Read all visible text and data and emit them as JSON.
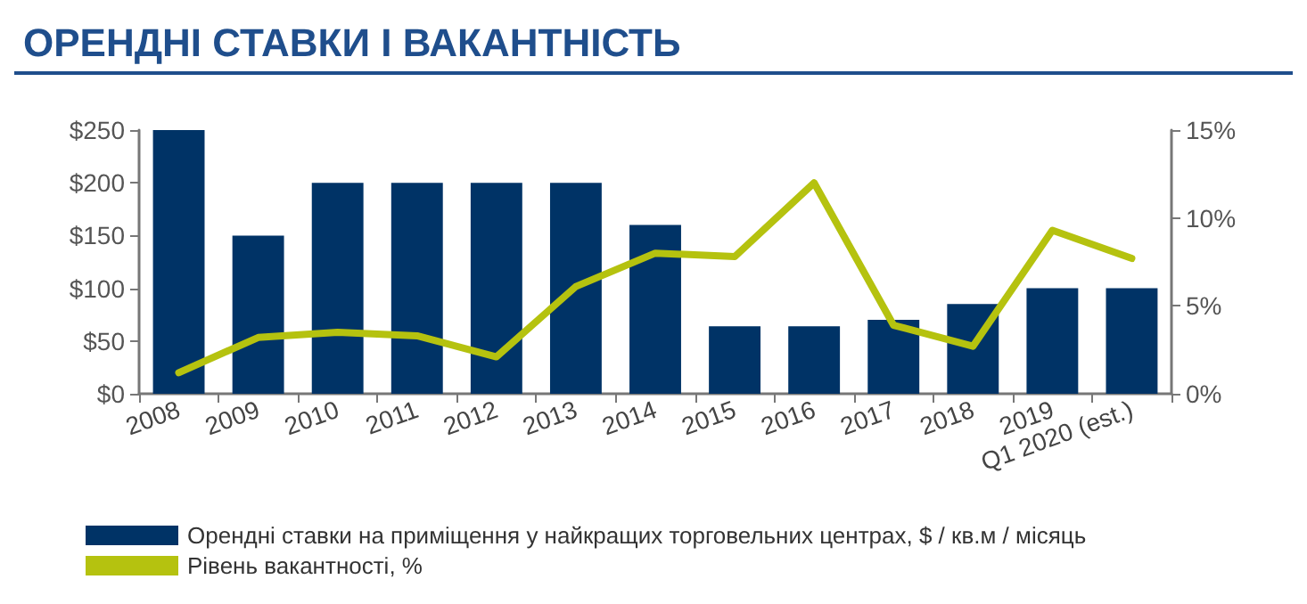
{
  "chart_data": {
    "type": "bar",
    "title": "ОРЕНДНІ СТАВКИ І ВАКАНТНІСТЬ",
    "categories": [
      "2008",
      "2009",
      "2010",
      "2011",
      "2012",
      "2013",
      "2014",
      "2015",
      "2016",
      "2017",
      "2018",
      "2019",
      "Q1 2020 (est.)"
    ],
    "series": [
      {
        "name": "Орендні ставки на приміщення у найкращих торговельних центрах, $ / кв.м / місяць",
        "color": "#003366",
        "values": [
          250,
          150,
          200,
          200,
          200,
          200,
          160,
          64,
          64,
          70,
          85,
          100,
          100
        ]
      },
      {
        "name": "Рівень вакантності, %",
        "type": "line",
        "axis": "y2",
        "color": "#b5c20f",
        "values": [
          1.2,
          3.2,
          3.5,
          3.3,
          2.1,
          6.1,
          8.0,
          7.8,
          12.0,
          3.9,
          2.7,
          9.3,
          7.7
        ]
      }
    ],
    "ylim": [
      0,
      250
    ],
    "yticks": [
      {
        "value": 0,
        "label": "$0"
      },
      {
        "value": 50,
        "label": "$50"
      },
      {
        "value": 100,
        "label": "$100"
      },
      {
        "value": 150,
        "label": "$150"
      },
      {
        "value": 200,
        "label": "$200"
      },
      {
        "value": 250,
        "label": "$250"
      }
    ],
    "y2lim": [
      0,
      15
    ],
    "y2ticks": [
      {
        "value": 0,
        "label": "0%"
      },
      {
        "value": 5,
        "label": "5%"
      },
      {
        "value": 10,
        "label": "10%"
      },
      {
        "value": 15,
        "label": "15%"
      }
    ],
    "grid": false,
    "legend": "bottom",
    "marker": "none",
    "line_style": "solid"
  }
}
